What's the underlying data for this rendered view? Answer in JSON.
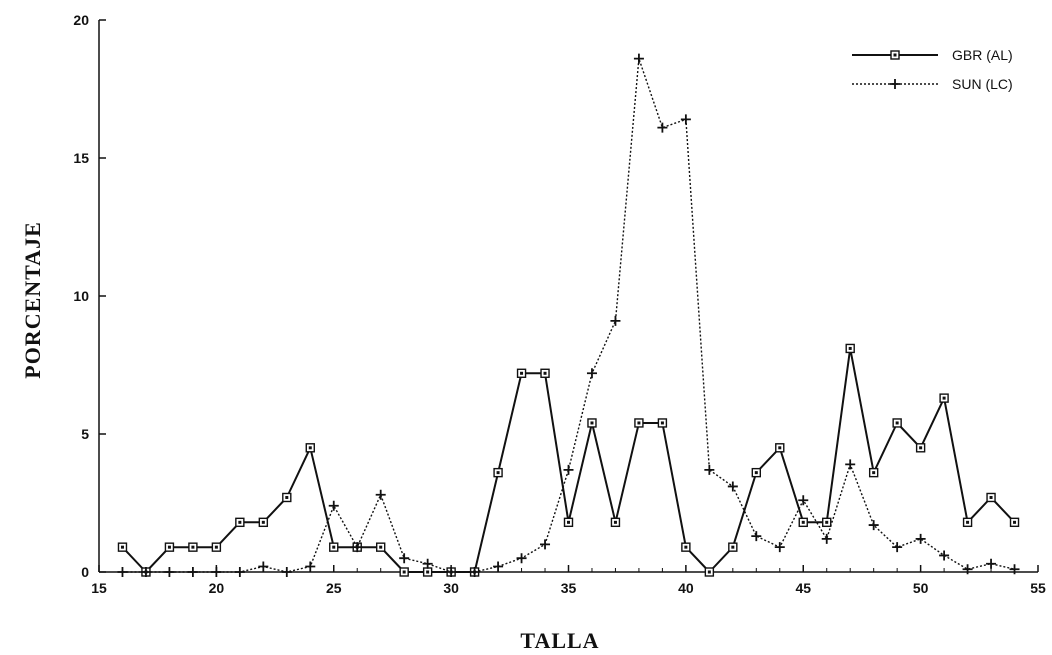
{
  "chart_data": {
    "type": "line",
    "title": "",
    "xlabel": "TALLA",
    "ylabel": "PORCENTAJE",
    "xlim": [
      15,
      55
    ],
    "ylim": [
      0,
      20
    ],
    "x_ticks": [
      15,
      20,
      25,
      30,
      35,
      40,
      45,
      50,
      55
    ],
    "y_ticks": [
      0,
      5,
      10,
      15,
      20
    ],
    "grid": false,
    "legend_position": "top-right",
    "series": [
      {
        "name": "GBR (AL)",
        "line_style": "solid",
        "marker": "square",
        "x": [
          16,
          17,
          18,
          19,
          20,
          21,
          22,
          23,
          24,
          25,
          26,
          27,
          28,
          29,
          30,
          31,
          32,
          33,
          34,
          35,
          36,
          37,
          38,
          39,
          40,
          41,
          42,
          43,
          44,
          45,
          46,
          47,
          48,
          49,
          50,
          51,
          52,
          53,
          54
        ],
        "values": [
          0.9,
          0,
          0.9,
          0.9,
          0.9,
          1.8,
          1.8,
          2.7,
          4.5,
          0.9,
          0.9,
          0.9,
          0,
          0,
          0,
          0,
          3.6,
          7.2,
          7.2,
          1.8,
          5.4,
          1.8,
          5.4,
          5.4,
          0.9,
          0,
          0.9,
          3.6,
          4.5,
          1.8,
          1.8,
          8.1,
          3.6,
          5.4,
          4.5,
          6.3,
          1.8,
          2.7,
          1.8
        ]
      },
      {
        "name": "SUN (LC)",
        "line_style": "dotted",
        "marker": "plus",
        "x": [
          16,
          17,
          18,
          19,
          20,
          21,
          22,
          23,
          24,
          25,
          26,
          27,
          28,
          29,
          30,
          31,
          32,
          33,
          34,
          35,
          36,
          37,
          38,
          39,
          40,
          41,
          42,
          43,
          44,
          45,
          46,
          47,
          48,
          49,
          50,
          51,
          52,
          53,
          54
        ],
        "values": [
          0,
          0,
          0,
          0,
          0,
          0,
          0.2,
          0,
          0.2,
          2.4,
          0.9,
          2.8,
          0.5,
          0.3,
          0,
          0,
          0.2,
          0.5,
          1,
          3.7,
          7.2,
          9.1,
          18.6,
          16.1,
          16.4,
          3.7,
          3.1,
          1.3,
          0.9,
          2.6,
          1.2,
          3.9,
          1.7,
          0.9,
          1.2,
          0.6,
          0.1,
          0.3,
          0.1
        ]
      }
    ]
  }
}
